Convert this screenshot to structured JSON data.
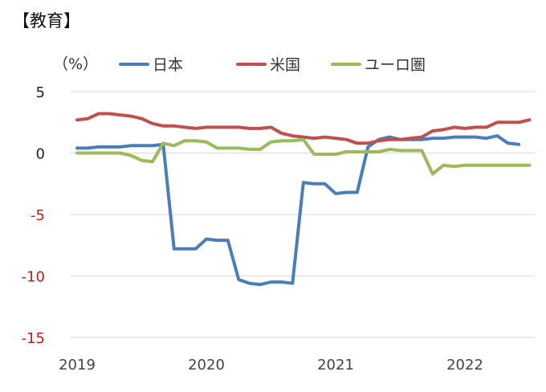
{
  "chart_data": {
    "type": "line",
    "title": "【教育】",
    "ylabel": "（%）",
    "xlabel": "",
    "ylim": [
      -15,
      5
    ],
    "yticks": [
      5,
      0,
      -5,
      -10,
      -15
    ],
    "xticks": [
      "2019",
      "2020",
      "2021",
      "2022"
    ],
    "x_start": 2019.0,
    "x_step_months": 1,
    "grid": "horizontal",
    "legend": "top",
    "series": [
      {
        "name": "日本",
        "color": "#4a7ebb",
        "values": [
          0.4,
          0.4,
          0.5,
          0.5,
          0.5,
          0.6,
          0.6,
          0.6,
          0.7,
          -7.8,
          -7.8,
          -7.8,
          -7.0,
          -7.1,
          -7.1,
          -10.3,
          -10.6,
          -10.7,
          -10.5,
          -10.5,
          -10.6,
          -2.4,
          -2.5,
          -2.5,
          -3.3,
          -3.2,
          -3.2,
          0.5,
          1.1,
          1.3,
          1.1,
          1.1,
          1.1,
          1.2,
          1.2,
          1.3,
          1.3,
          1.3,
          1.2,
          1.4,
          0.8,
          0.7
        ]
      },
      {
        "name": "米国",
        "color": "#c0504d",
        "values": [
          2.7,
          2.8,
          3.2,
          3.2,
          3.1,
          3.0,
          2.8,
          2.4,
          2.2,
          2.2,
          2.1,
          2.0,
          2.1,
          2.1,
          2.1,
          2.1,
          2.0,
          2.0,
          2.1,
          1.6,
          1.4,
          1.3,
          1.2,
          1.3,
          1.2,
          1.1,
          0.8,
          0.8,
          1.0,
          1.1,
          1.1,
          1.2,
          1.3,
          1.8,
          1.9,
          2.1,
          2.0,
          2.1,
          2.1,
          2.5,
          2.5,
          2.5,
          2.7
        ]
      },
      {
        "name": "ユーロ圏",
        "color": "#9bbb59",
        "values": [
          0.0,
          0.0,
          0.0,
          0.0,
          0.0,
          -0.2,
          -0.6,
          -0.7,
          0.8,
          0.6,
          1.0,
          1.0,
          0.9,
          0.4,
          0.4,
          0.4,
          0.3,
          0.3,
          0.9,
          1.0,
          1.0,
          1.1,
          -0.1,
          -0.1,
          -0.1,
          0.1,
          0.1,
          0.1,
          0.1,
          0.3,
          0.2,
          0.2,
          0.2,
          -1.7,
          -1.0,
          -1.1,
          -1.0,
          -1.0,
          -1.0,
          -1.0,
          -1.0,
          -1.0,
          -1.0
        ]
      }
    ]
  }
}
